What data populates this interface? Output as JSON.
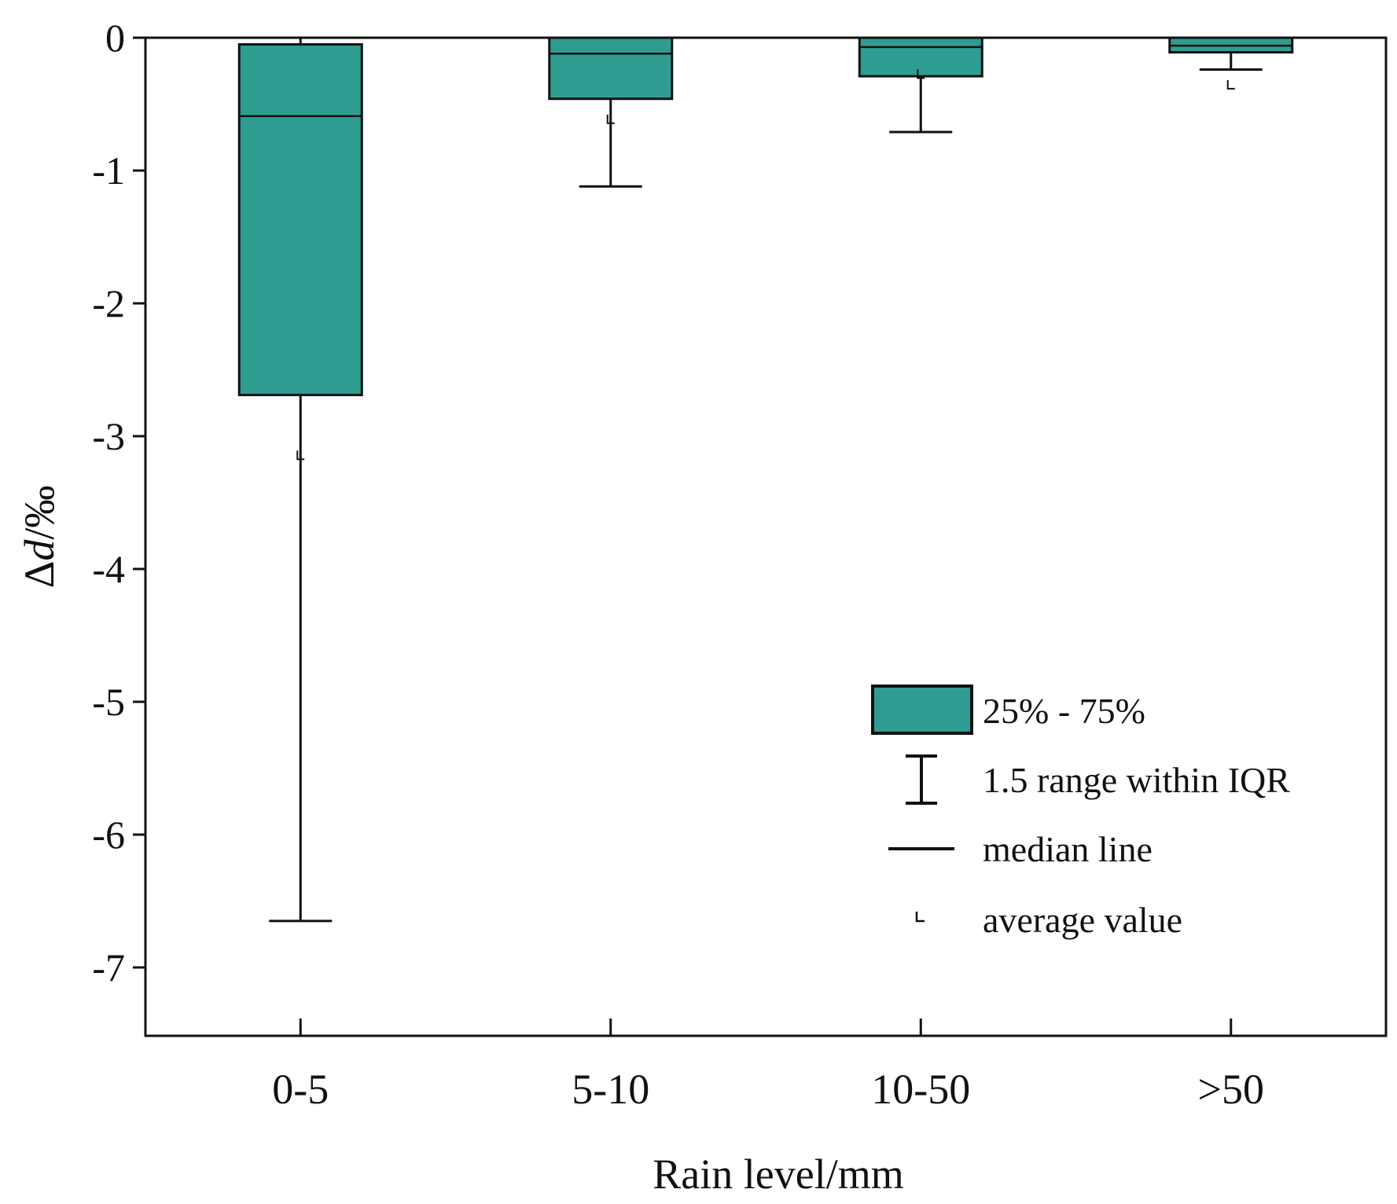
{
  "chart_data": {
    "type": "box",
    "xlabel": "Rain level/mm",
    "ylabel": {
      "prefix": "Δ",
      "variable": "d",
      "suffix": "/‰"
    },
    "ylim": [
      -7.5,
      0
    ],
    "yticks": [
      0,
      -1,
      -2,
      -3,
      -4,
      -5,
      -6,
      -7
    ],
    "ytick_labels": [
      "0",
      "-1",
      "-2",
      "-3",
      "-4",
      "-5",
      "-6",
      "-7"
    ],
    "categories": [
      "0-5",
      "5-10",
      "10-50",
      ">50"
    ],
    "boxes": [
      {
        "category": "0-5",
        "q1": -2.69,
        "median": -0.59,
        "q3": -0.05,
        "whisker_low": -6.65,
        "whisker_high": 0.0,
        "mean": -3.15
      },
      {
        "category": "5-10",
        "q1": -0.46,
        "median": -0.12,
        "q3": 0.0,
        "whisker_low": -1.12,
        "whisker_high": 0.0,
        "mean": -0.62
      },
      {
        "category": "10-50",
        "q1": -0.29,
        "median": -0.07,
        "q3": 0.0,
        "whisker_low": -0.71,
        "whisker_high": 0.0,
        "mean": -0.28
      },
      {
        "category": ">50",
        "q1": -0.11,
        "median": -0.06,
        "q3": 0.0,
        "whisker_low": -0.24,
        "whisker_high": 0.0,
        "mean": -0.36
      }
    ],
    "legend": {
      "position": "bottom-right",
      "entries": [
        {
          "label": "25% - 75%",
          "symbol": "box"
        },
        {
          "label": "1.5 range within IQR",
          "symbol": "whisker"
        },
        {
          "label": "median line",
          "symbol": "line"
        },
        {
          "label": "average value",
          "symbol": "mean-marker"
        }
      ]
    },
    "colors": {
      "box_fill": "#2f9c91",
      "line": "#111111",
      "background": "#ffffff"
    }
  }
}
